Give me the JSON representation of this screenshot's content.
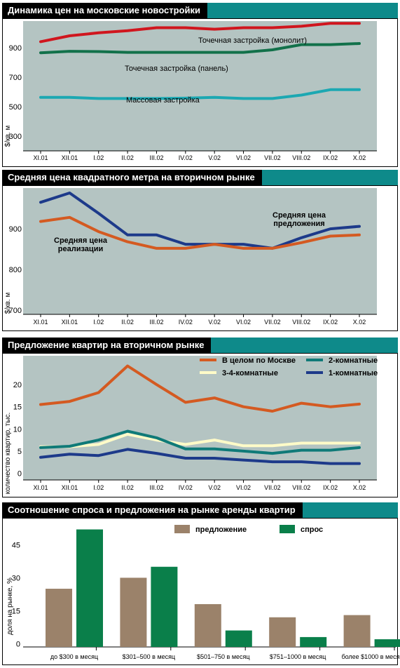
{
  "colors": {
    "header_bg": "#000000",
    "header_band": "#0e8a8a",
    "plot_bg": "#b4c4c2",
    "red": "#d0161e",
    "green": "#12714a",
    "teal": "#1ca8b2",
    "orange": "#d45a21",
    "navy": "#1d3a8a",
    "dgreen": "#0f7a78",
    "cream": "#fffbc8",
    "brown": "#9b826a",
    "bgreen": "#0a7f4a"
  },
  "charts": [
    {
      "title": "Динамика цен на московские новостройки"
    },
    {
      "title": "Средняя цена квадратного метра на вторичном рынке"
    },
    {
      "title": "Предложение квартир на вторичном рынке"
    },
    {
      "title": "Соотношение спроса и предложения на рынке аренды квартир"
    }
  ],
  "chart_data": [
    {
      "type": "area",
      "title": "Динамика цен на московские новостройки",
      "ylabel": "$/кв. м",
      "categories": [
        "XI.01",
        "XII.01",
        "I.02",
        "II.02",
        "III.02",
        "IV.02",
        "V.02",
        "VI.02",
        "VII.02",
        "VIII.02",
        "IX.02",
        "X.02"
      ],
      "yticks": [
        300,
        500,
        700,
        900
      ],
      "ylim": [
        200,
        1080
      ],
      "series": [
        {
          "name": "Точечная застройка (монолит)",
          "color": "red",
          "values": [
            940,
            980,
            1000,
            1015,
            1035,
            1035,
            1025,
            1035,
            1035,
            1045,
            1065,
            1065
          ]
        },
        {
          "name": "Точечная застройка (панель)",
          "color": "green",
          "values": [
            865,
            875,
            873,
            868,
            868,
            868,
            868,
            868,
            885,
            920,
            920,
            928
          ]
        },
        {
          "name": "Массовая застройка",
          "color": "teal",
          "values": [
            563,
            563,
            555,
            555,
            555,
            557,
            563,
            555,
            555,
            578,
            615,
            615
          ]
        }
      ]
    },
    {
      "type": "area",
      "title": "Средняя цена квадратного метра на вторичном рынке",
      "ylabel": "$/кв. м",
      "categories": [
        "XI.01",
        "XII.01",
        "I.02",
        "II.02",
        "III.02",
        "IV.02",
        "V.02",
        "VI.02",
        "VII.02",
        "VIII.02",
        "IX.02",
        "X.02"
      ],
      "yticks": [
        700,
        800,
        900
      ],
      "ylim": [
        690,
        1000
      ],
      "series": [
        {
          "name": "Средняя цена предложения",
          "color": "navy",
          "values": [
            965,
            988,
            938,
            885,
            885,
            862,
            862,
            862,
            852,
            878,
            900,
            906
          ]
        },
        {
          "name": "Средняя цена реализации",
          "color": "orange",
          "values": [
            918,
            928,
            893,
            868,
            852,
            852,
            862,
            852,
            852,
            866,
            882,
            885
          ]
        }
      ]
    },
    {
      "type": "area",
      "title": "Предложение квартир на вторичном рынке",
      "ylabel": "количество квартир, тыс.",
      "categories": [
        "XI.01",
        "XII.01",
        "I.02",
        "II.02",
        "III.02",
        "IV.02",
        "V.02",
        "VI.02",
        "VII.02",
        "VIII.02",
        "IX.02",
        "X.02"
      ],
      "yticks": [
        0,
        5,
        10,
        15,
        20
      ],
      "ylim": [
        -1.5,
        26.5
      ],
      "series": [
        {
          "name": "В целом по Москве",
          "color": "orange",
          "values": [
            15.5,
            16.2,
            18.2,
            24.2,
            20.0,
            16.0,
            17.0,
            15.0,
            14.0,
            15.8,
            15.0,
            15.6
          ]
        },
        {
          "name": "3-4-комнатные",
          "color": "cream",
          "values": [
            6.0,
            6.0,
            6.5,
            8.8,
            7.5,
            6.5,
            7.5,
            6.2,
            6.2,
            6.8,
            6.8,
            6.8
          ]
        },
        {
          "name": "2-комнатные",
          "color": "dgreen",
          "values": [
            5.8,
            6.1,
            7.5,
            9.5,
            8.0,
            5.5,
            5.5,
            5.0,
            4.5,
            5.2,
            5.2,
            5.8
          ]
        },
        {
          "name": "1-комнатные",
          "color": "navy",
          "values": [
            3.6,
            4.3,
            4.0,
            5.4,
            4.5,
            3.4,
            3.4,
            3.0,
            2.6,
            2.6,
            2.2,
            2.2
          ]
        }
      ],
      "legend": [
        {
          "name": "В целом по Москве",
          "color": "orange"
        },
        {
          "name": "2-комнатные",
          "color": "dgreen"
        },
        {
          "name": "3-4-комнатные",
          "color": "cream"
        },
        {
          "name": "1-комнатные",
          "color": "navy"
        }
      ]
    },
    {
      "type": "bar",
      "title": "Соотношение спроса и предложения на рынке аренды квартир",
      "ylabel": "доля на рынке, %",
      "categories": [
        "до $300 в месяц",
        "$301–500 в месяц",
        "$501–750 в месяц",
        "$751–1000 в месяц",
        "более $1000 в месяц"
      ],
      "yticks": [
        0,
        15,
        30,
        45
      ],
      "ylim": [
        -1.5,
        56
      ],
      "series": [
        {
          "name": "предложение",
          "color": "brown",
          "values": [
            25,
            30,
            18,
            12,
            13
          ]
        },
        {
          "name": "спрос",
          "color": "bgreen",
          "values": [
            52,
            35,
            6,
            3,
            2
          ]
        }
      ]
    }
  ]
}
